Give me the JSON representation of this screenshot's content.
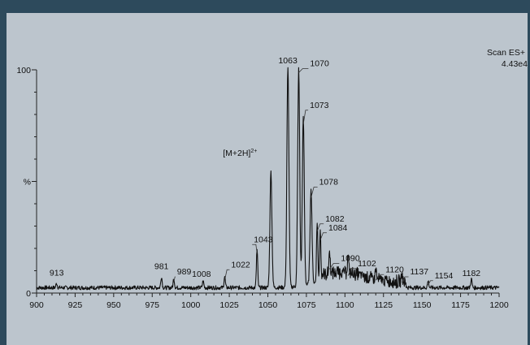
{
  "chart_data": {
    "type": "line",
    "title": "",
    "xlabel": "",
    "ylabel": "%",
    "xlim": [
      900,
      1200
    ],
    "ylim": [
      0,
      100
    ],
    "x_ticks": [
      900,
      925,
      950,
      975,
      1000,
      1025,
      1050,
      1075,
      1100,
      1125,
      1150,
      1175,
      1200
    ],
    "y_ticks": [
      {
        "value": 0,
        "label": "0"
      },
      {
        "value": 50,
        "label": "%"
      },
      {
        "value": 100,
        "label": "100"
      }
    ],
    "scan_label": "Scan ES+",
    "intensity_label": "4.43e4",
    "annotation": {
      "text": "[M+2H]",
      "sup": "2+",
      "x": 1052
    },
    "peaks": [
      {
        "x": 913,
        "y": 2
      },
      {
        "x": 981,
        "y": 5
      },
      {
        "x": 989,
        "y": 4
      },
      {
        "x": 1008,
        "y": 3
      },
      {
        "x": 1022,
        "y": 5
      },
      {
        "x": 1043,
        "y": 17
      },
      {
        "x": 1052,
        "y": 52
      },
      {
        "x": 1063,
        "y": 100
      },
      {
        "x": 1070,
        "y": 98
      },
      {
        "x": 1073,
        "y": 75
      },
      {
        "x": 1078,
        "y": 42
      },
      {
        "x": 1082,
        "y": 27
      },
      {
        "x": 1084,
        "y": 23
      },
      {
        "x": 1090,
        "y": 10
      },
      {
        "x": 1102,
        "y": 7
      },
      {
        "x": 1120,
        "y": 5
      },
      {
        "x": 1137,
        "y": 4
      },
      {
        "x": 1154,
        "y": 3
      },
      {
        "x": 1182,
        "y": 4
      }
    ],
    "peak_labels": [
      {
        "text": "913",
        "x": 913
      },
      {
        "text": "981",
        "x": 981
      },
      {
        "text": "989",
        "x": 989
      },
      {
        "text": "1008",
        "x": 1008
      },
      {
        "text": "1022",
        "x": 1022
      },
      {
        "text": "1043",
        "x": 1043
      },
      {
        "text": "1063",
        "x": 1063
      },
      {
        "text": "1070",
        "x": 1070
      },
      {
        "text": "1073",
        "x": 1073
      },
      {
        "text": "1078",
        "x": 1078
      },
      {
        "text": "1082",
        "x": 1082
      },
      {
        "text": "1084",
        "x": 1084
      },
      {
        "text": "1090",
        "x": 1090
      },
      {
        "text": "1102",
        "x": 1102
      },
      {
        "text": "1120",
        "x": 1120
      },
      {
        "text": "1137",
        "x": 1137
      },
      {
        "text": "1154",
        "x": 1154
      },
      {
        "text": "1182",
        "x": 1182
      }
    ],
    "grid": false,
    "legend": "none"
  }
}
